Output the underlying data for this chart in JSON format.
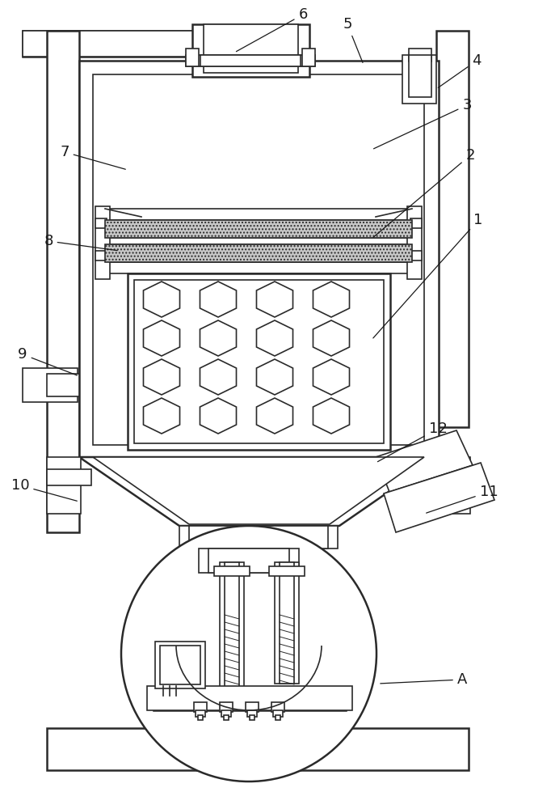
{
  "bg_color": "#ffffff",
  "lc": "#2a2a2a",
  "lw": 1.2,
  "lw2": 1.8
}
